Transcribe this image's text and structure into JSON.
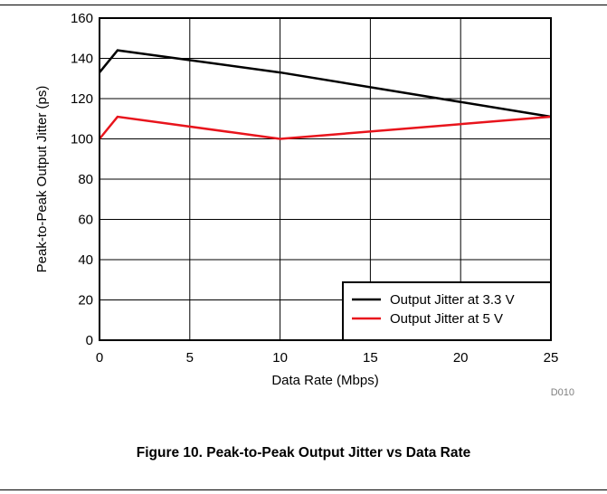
{
  "chart_data": {
    "type": "line",
    "title": "",
    "xlabel": "Data Rate (Mbps)",
    "ylabel": "Peak-to-Peak Output Jitter (ps)",
    "xlim": [
      0,
      25
    ],
    "ylim": [
      0,
      160
    ],
    "xticks": [
      0,
      5,
      10,
      15,
      20,
      25
    ],
    "yticks": [
      0,
      20,
      40,
      60,
      80,
      100,
      120,
      140,
      160
    ],
    "grid": true,
    "legend_position": "bottom-right",
    "series": [
      {
        "name": "Output Jitter at 3.3 V",
        "color": "#000000",
        "x": [
          0,
          1,
          10,
          25
        ],
        "y": [
          133,
          144,
          133,
          111
        ]
      },
      {
        "name": "Output Jitter at 5 V",
        "color": "#e8141c",
        "x": [
          0,
          1,
          10,
          25
        ],
        "y": [
          100,
          111,
          100,
          111
        ]
      }
    ],
    "figure_id": "D010"
  },
  "caption": "Figure 10. Peak-to-Peak Output Jitter vs Data Rate"
}
